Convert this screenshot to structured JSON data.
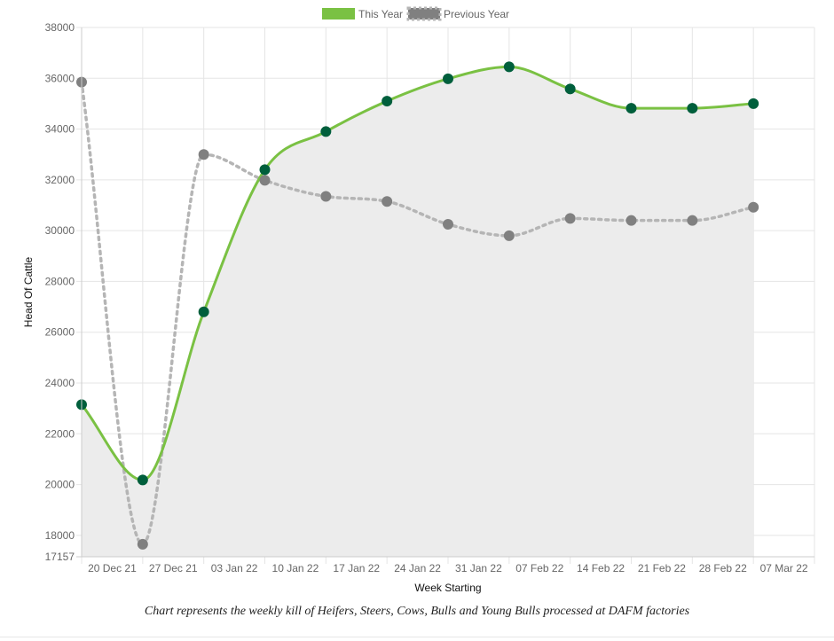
{
  "chart_data": {
    "type": "line",
    "categories": [
      "20 Dec 21",
      "27 Dec 21",
      "03 Jan 22",
      "10 Jan 22",
      "17 Jan 22",
      "24 Jan 22",
      "31 Jan 22",
      "07 Feb 22",
      "14 Feb 22",
      "21 Feb 22",
      "28 Feb 22",
      "07 Mar 22"
    ],
    "series": [
      {
        "name": "This Year",
        "color": "#7ac143",
        "point_color": "#005f3c",
        "style": "solid",
        "values": [
          23150,
          20180,
          26800,
          32400,
          33900,
          35100,
          35980,
          36450,
          35580,
          34820,
          34820,
          35000
        ]
      },
      {
        "name": "Previous Year",
        "color": "#b5b5b5",
        "point_color": "#808080",
        "style": "dotted",
        "values": [
          35850,
          17650,
          33000,
          31980,
          31350,
          31150,
          30250,
          29800,
          30480,
          30400,
          30400,
          30920
        ]
      }
    ],
    "xlabel": "Week Starting",
    "ylabel": "Head Of Cattle",
    "ylim": [
      17157,
      38000
    ],
    "yticks": [
      17157,
      18000,
      20000,
      22000,
      24000,
      26000,
      28000,
      30000,
      32000,
      34000,
      36000,
      38000
    ],
    "grid": true,
    "legend": "top-center",
    "fill_color": "#ececec"
  },
  "caption": "Chart represents the weekly kill of Heifers, Steers, Cows, Bulls and Young Bulls processed at DAFM factories"
}
